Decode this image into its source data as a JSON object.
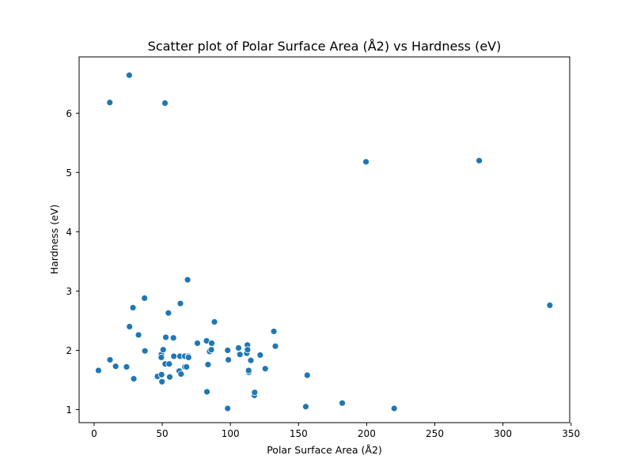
{
  "chart_data": {
    "type": "scatter",
    "title": "Scatter plot of Polar Surface Area (Å2) vs Hardness  (eV)",
    "xlabel": "Polar Surface Area (Å2)",
    "ylabel": "Hardness  (eV)",
    "xlim": [
      -11,
      349
    ],
    "ylim": [
      0.78,
      6.95
    ],
    "xticks": [
      0,
      50,
      100,
      150,
      200,
      250,
      300,
      350
    ],
    "yticks": [
      1,
      2,
      3,
      4,
      5,
      6
    ],
    "grid": false,
    "legend": "none",
    "marker_color": "#1f77b4",
    "marker_edge": "#ffffff",
    "series": [
      {
        "points": [
          [
            3.2,
            1.66
          ],
          [
            11.7,
            1.84
          ],
          [
            11.5,
            6.18
          ],
          [
            15.8,
            1.73
          ],
          [
            23.8,
            1.72
          ],
          [
            25.8,
            6.64
          ],
          [
            26.0,
            2.4
          ],
          [
            28.5,
            2.72
          ],
          [
            29.1,
            1.52
          ],
          [
            32.6,
            2.26
          ],
          [
            37.0,
            2.88
          ],
          [
            37.3,
            1.99
          ],
          [
            46.5,
            1.56
          ],
          [
            49.3,
            1.93
          ],
          [
            49.3,
            1.88
          ],
          [
            49.5,
            1.59
          ],
          [
            49.8,
            1.47
          ],
          [
            50.7,
            2.01
          ],
          [
            52.0,
            6.17
          ],
          [
            52.2,
            1.77
          ],
          [
            52.6,
            2.22
          ],
          [
            54.5,
            2.63
          ],
          [
            55.1,
            1.77
          ],
          [
            55.5,
            1.55
          ],
          [
            58.2,
            2.21
          ],
          [
            58.5,
            1.9
          ],
          [
            62.5,
            1.65
          ],
          [
            63.0,
            1.9
          ],
          [
            63.3,
            2.79
          ],
          [
            63.8,
            1.6
          ],
          [
            66.5,
            1.9
          ],
          [
            66.6,
            1.72
          ],
          [
            67.8,
            1.72
          ],
          [
            68.6,
            3.19
          ],
          [
            69.2,
            1.9
          ],
          [
            69.3,
            1.88
          ],
          [
            75.8,
            2.12
          ],
          [
            82.5,
            2.16
          ],
          [
            82.8,
            1.3
          ],
          [
            83.6,
            1.76
          ],
          [
            84.8,
            1.98
          ],
          [
            86.0,
            2.01
          ],
          [
            86.3,
            2.12
          ],
          [
            88.3,
            2.48
          ],
          [
            98.0,
            1.02
          ],
          [
            98.0,
            2.0
          ],
          [
            98.5,
            1.84
          ],
          [
            106.0,
            2.04
          ],
          [
            107.0,
            1.93
          ],
          [
            112.0,
            1.95
          ],
          [
            112.5,
            2.09
          ],
          [
            112.6,
            2.01
          ],
          [
            113.5,
            1.63
          ],
          [
            113.4,
            1.66
          ],
          [
            115.0,
            1.83
          ],
          [
            117.6,
            1.24
          ],
          [
            117.8,
            1.29
          ],
          [
            121.9,
            1.92
          ],
          [
            125.6,
            1.69
          ],
          [
            131.9,
            2.32
          ],
          [
            133.0,
            2.07
          ],
          [
            155.3,
            1.05
          ],
          [
            156.4,
            1.58
          ],
          [
            182.1,
            1.11
          ],
          [
            199.5,
            5.18
          ],
          [
            220.2,
            1.02
          ],
          [
            282.6,
            5.2
          ],
          [
            334.4,
            2.76
          ]
        ]
      }
    ]
  }
}
